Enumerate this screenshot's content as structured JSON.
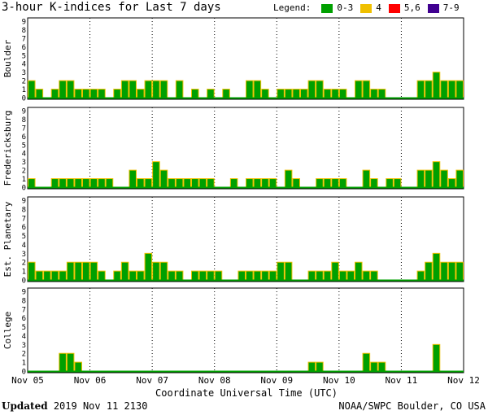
{
  "title": "3-hour K-indices for Last 7 days",
  "legend": {
    "label": "Legend:",
    "items": [
      {
        "label": "0-3",
        "color": "#00a000"
      },
      {
        "label": "4",
        "color": "#f0c000"
      },
      {
        "label": "5,6",
        "color": "#ff0000"
      },
      {
        "label": "7-9",
        "color": "#400090"
      }
    ]
  },
  "footer": {
    "updated_label": "Updated",
    "updated_value": "2019 Nov 11 2130",
    "credit": "NOAA/SWPC Boulder, CO USA"
  },
  "chart_data": {
    "type": "bar",
    "xlabel": "Coordinate Universal Time (UTC)",
    "x_ticks": [
      "Nov 05",
      "Nov 06",
      "Nov 07",
      "Nov 08",
      "Nov 09",
      "Nov 10",
      "Nov 11",
      "Nov 12"
    ],
    "y_ticks": [
      0,
      1,
      2,
      3,
      4,
      5,
      6,
      7,
      8,
      9
    ],
    "ylim": [
      0,
      9
    ],
    "bars_per_day": 8,
    "grid": true,
    "bar_color": "#00a000",
    "bar_edge_color": "#f0c000",
    "series": [
      {
        "name": "Boulder",
        "values": [
          2,
          1,
          0,
          1,
          2,
          2,
          1,
          1,
          1,
          1,
          0,
          1,
          2,
          2,
          1,
          2,
          2,
          2,
          0,
          2,
          0,
          1,
          0,
          1,
          0,
          1,
          0,
          0,
          2,
          2,
          1,
          0,
          1,
          1,
          1,
          1,
          2,
          2,
          1,
          1,
          1,
          0,
          2,
          2,
          1,
          1,
          0,
          0,
          0,
          0,
          2,
          2,
          3,
          2,
          2,
          2,
          0
        ]
      },
      {
        "name": "Fredericksburg",
        "values": [
          1,
          0,
          0,
          1,
          1,
          1,
          1,
          1,
          1,
          1,
          1,
          0,
          0,
          2,
          1,
          1,
          3,
          2,
          1,
          1,
          1,
          1,
          1,
          1,
          0,
          0,
          1,
          0,
          1,
          1,
          1,
          1,
          0,
          2,
          1,
          0,
          0,
          1,
          1,
          1,
          1,
          0,
          0,
          2,
          1,
          0,
          1,
          1,
          0,
          0,
          2,
          2,
          3,
          2,
          1,
          2,
          0
        ]
      },
      {
        "name": "Est. Planetary",
        "values": [
          2,
          1,
          1,
          1,
          1,
          2,
          2,
          2,
          2,
          1,
          0,
          1,
          2,
          1,
          1,
          3,
          2,
          2,
          1,
          1,
          0,
          1,
          1,
          1,
          1,
          0,
          0,
          1,
          1,
          1,
          1,
          1,
          2,
          2,
          0,
          0,
          1,
          1,
          1,
          2,
          1,
          1,
          2,
          1,
          1,
          0,
          0,
          0,
          0,
          0,
          1,
          2,
          3,
          2,
          2,
          2,
          0
        ]
      },
      {
        "name": "College",
        "values": [
          0,
          0,
          0,
          0,
          2,
          2,
          1,
          0,
          0,
          0,
          0,
          0,
          0,
          0,
          0,
          0,
          0,
          0,
          0,
          0,
          0,
          0,
          0,
          0,
          0,
          0,
          0,
          0,
          0,
          0,
          0,
          0,
          0,
          0,
          0,
          0,
          1,
          1,
          0,
          0,
          0,
          0,
          0,
          2,
          1,
          1,
          0,
          0,
          0,
          0,
          0,
          0,
          3,
          0,
          0,
          0,
          0
        ]
      }
    ]
  }
}
